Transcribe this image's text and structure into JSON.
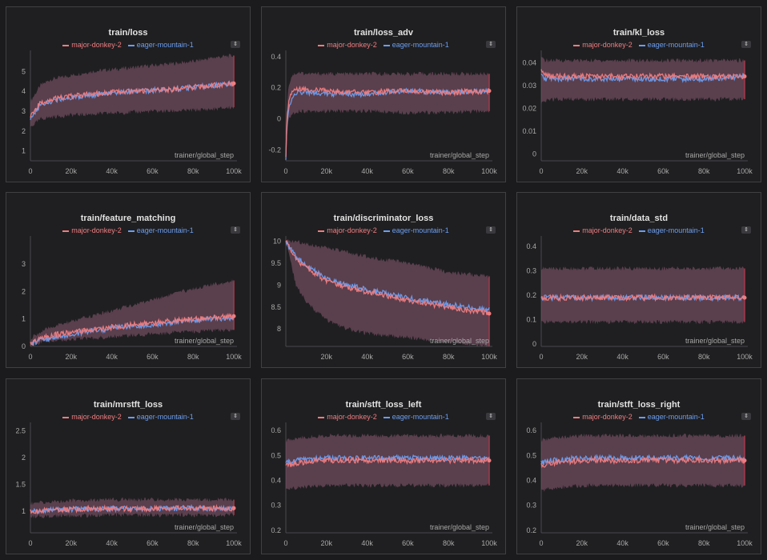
{
  "legend": {
    "run1": "major-donkey-2",
    "run2": "eager-mountain-1",
    "run1_color": "#f07d80",
    "run2_color": "#6c9ef0",
    "band_color": "#8a5a72"
  },
  "menu_icon": "up-down-chevron-icon",
  "chart_data": [
    {
      "type": "line",
      "title": "train/loss",
      "xlabel": "trainer/global_step",
      "xlim": [
        0,
        100000
      ],
      "xticks": [
        0,
        20000,
        40000,
        60000,
        80000,
        100000
      ],
      "xtick_labels": [
        "0",
        "20k",
        "40k",
        "60k",
        "80k",
        "100k"
      ],
      "ylim": [
        0.5,
        5.9
      ],
      "yticks": [
        1,
        2,
        3,
        4,
        5
      ],
      "ytick_labels": [
        "1",
        "2",
        "3",
        "4",
        "5"
      ],
      "series": [
        {
          "name": "major-donkey-2",
          "x": [
            0,
            5000,
            10000,
            20000,
            30000,
            40000,
            50000,
            60000,
            70000,
            80000,
            90000,
            100000
          ],
          "values": [
            2.8,
            3.4,
            3.6,
            3.75,
            3.85,
            3.95,
            4.0,
            4.05,
            4.1,
            4.2,
            4.3,
            4.4
          ],
          "band_low": [
            2.2,
            2.6,
            2.7,
            2.8,
            2.85,
            2.9,
            2.95,
            3.0,
            3.0,
            3.05,
            3.1,
            3.2
          ],
          "band_high": [
            3.5,
            4.3,
            4.6,
            4.8,
            5.0,
            5.1,
            5.2,
            5.3,
            5.4,
            5.5,
            5.7,
            5.8
          ]
        },
        {
          "name": "eager-mountain-1",
          "x": [
            0,
            5000,
            10000,
            20000,
            30000,
            40000,
            50000,
            60000,
            70000,
            80000,
            90000,
            100000
          ],
          "values": [
            2.7,
            3.3,
            3.5,
            3.7,
            3.82,
            3.92,
            4.0,
            4.05,
            4.1,
            4.2,
            4.3,
            4.4
          ]
        }
      ]
    },
    {
      "type": "line",
      "title": "train/loss_adv",
      "xlabel": "trainer/global_step",
      "xlim": [
        0,
        100000
      ],
      "xticks": [
        0,
        20000,
        40000,
        60000,
        80000,
        100000
      ],
      "xtick_labels": [
        "0",
        "20k",
        "40k",
        "60k",
        "80k",
        "100k"
      ],
      "ylim": [
        -0.27,
        0.42
      ],
      "yticks": [
        -0.2,
        0,
        0.2,
        0.4
      ],
      "ytick_labels": [
        "-0.2",
        "0",
        "0.2",
        "0.4"
      ],
      "series": [
        {
          "name": "major-donkey-2",
          "x": [
            0,
            500,
            1500,
            3000,
            6000,
            10000,
            20000,
            40000,
            60000,
            80000,
            100000
          ],
          "values": [
            -0.23,
            0.0,
            0.12,
            0.18,
            0.2,
            0.19,
            0.18,
            0.17,
            0.18,
            0.17,
            0.18
          ],
          "band_low": [
            -0.25,
            -0.1,
            0.0,
            0.03,
            0.05,
            0.05,
            0.05,
            0.05,
            0.04,
            0.04,
            0.05
          ],
          "band_high": [
            -0.1,
            0.1,
            0.22,
            0.28,
            0.3,
            0.29,
            0.29,
            0.29,
            0.29,
            0.29,
            0.29
          ]
        },
        {
          "name": "eager-mountain-1",
          "x": [
            0,
            500,
            1500,
            3000,
            6000,
            10000,
            20000,
            40000,
            60000,
            80000,
            100000
          ],
          "values": [
            -0.25,
            -0.05,
            0.08,
            0.13,
            0.17,
            0.17,
            0.16,
            0.16,
            0.18,
            0.17,
            0.18
          ]
        }
      ]
    },
    {
      "type": "line",
      "title": "train/kl_loss",
      "xlabel": "trainer/global_step",
      "xlim": [
        0,
        100000
      ],
      "xticks": [
        0,
        20000,
        40000,
        60000,
        80000,
        100000
      ],
      "xtick_labels": [
        "0",
        "20k",
        "40k",
        "60k",
        "80k",
        "100k"
      ],
      "ylim": [
        -0.003,
        0.044
      ],
      "yticks": [
        0,
        0.01,
        0.02,
        0.03,
        0.04
      ],
      "ytick_labels": [
        "0",
        "0.01",
        "0.02",
        "0.03",
        "0.04"
      ],
      "series": [
        {
          "name": "major-donkey-2",
          "x": [
            0,
            2000,
            5000,
            20000,
            40000,
            60000,
            80000,
            100000
          ],
          "values": [
            0.036,
            0.035,
            0.034,
            0.034,
            0.034,
            0.034,
            0.034,
            0.034
          ],
          "band_low": [
            0.022,
            0.023,
            0.024,
            0.024,
            0.024,
            0.024,
            0.024,
            0.024
          ],
          "band_high": [
            0.042,
            0.041,
            0.041,
            0.041,
            0.041,
            0.041,
            0.041,
            0.041
          ]
        },
        {
          "name": "eager-mountain-1",
          "x": [
            0,
            2000,
            5000,
            20000,
            40000,
            60000,
            80000,
            100000
          ],
          "values": [
            0.034,
            0.033,
            0.033,
            0.033,
            0.033,
            0.033,
            0.033,
            0.034
          ]
        }
      ]
    },
    {
      "type": "line",
      "title": "train/feature_matching",
      "xlabel": "trainer/global_step",
      "xlim": [
        0,
        100000
      ],
      "xticks": [
        0,
        20000,
        40000,
        60000,
        80000,
        100000
      ],
      "xtick_labels": [
        "0",
        "20k",
        "40k",
        "60k",
        "80k",
        "100k"
      ],
      "ylim": [
        0,
        3.9
      ],
      "yticks": [
        0,
        1,
        2,
        3
      ],
      "ytick_labels": [
        "0",
        "1",
        "2",
        "3"
      ],
      "series": [
        {
          "name": "major-donkey-2",
          "x": [
            0,
            2000,
            10000,
            20000,
            40000,
            60000,
            80000,
            100000
          ],
          "values": [
            0.1,
            0.2,
            0.4,
            0.5,
            0.7,
            0.85,
            1.0,
            1.1
          ],
          "band_low": [
            0.05,
            0.1,
            0.2,
            0.25,
            0.35,
            0.45,
            0.55,
            0.6
          ],
          "band_high": [
            0.2,
            0.4,
            0.7,
            0.9,
            1.3,
            1.7,
            2.1,
            2.4
          ]
        },
        {
          "name": "eager-mountain-1",
          "x": [
            0,
            2000,
            10000,
            20000,
            40000,
            60000,
            80000,
            100000
          ],
          "values": [
            0.08,
            0.15,
            0.3,
            0.45,
            0.65,
            0.8,
            0.95,
            1.05
          ]
        }
      ]
    },
    {
      "type": "line",
      "title": "train/discriminator_loss",
      "xlabel": "trainer/global_step",
      "xlim": [
        0,
        100000
      ],
      "xticks": [
        20000,
        40000,
        60000,
        80000,
        100000
      ],
      "xtick_labels": [
        "20k",
        "40k",
        "60k",
        "80k",
        "100k"
      ],
      "ylim": [
        7.6,
        10.05
      ],
      "yticks": [
        8,
        8.5,
        9,
        9.5,
        10
      ],
      "ytick_labels": [
        "8",
        "8.5",
        "9",
        "9.5",
        "10"
      ],
      "series": [
        {
          "name": "major-donkey-2",
          "x": [
            0,
            5000,
            10000,
            20000,
            30000,
            40000,
            60000,
            80000,
            100000
          ],
          "values": [
            10.0,
            9.6,
            9.4,
            9.1,
            8.95,
            8.85,
            8.65,
            8.5,
            8.35
          ],
          "band_low": [
            10.0,
            9.0,
            8.6,
            8.2,
            8.0,
            7.9,
            7.8,
            7.7,
            7.6
          ],
          "band_high": [
            10.0,
            10.0,
            9.95,
            9.85,
            9.75,
            9.65,
            9.5,
            9.3,
            9.2
          ]
        },
        {
          "name": "eager-mountain-1",
          "x": [
            0,
            5000,
            10000,
            20000,
            30000,
            40000,
            60000,
            80000,
            100000
          ],
          "values": [
            10.0,
            9.65,
            9.45,
            9.15,
            9.0,
            8.9,
            8.7,
            8.55,
            8.45
          ]
        }
      ]
    },
    {
      "type": "line",
      "title": "train/data_std",
      "xlabel": "trainer/global_step",
      "xlim": [
        0,
        100000
      ],
      "xticks": [
        0,
        20000,
        40000,
        60000,
        80000,
        100000
      ],
      "xtick_labels": [
        "0",
        "20k",
        "40k",
        "60k",
        "80k",
        "100k"
      ],
      "ylim": [
        -0.01,
        0.43
      ],
      "yticks": [
        0,
        0.1,
        0.2,
        0.3,
        0.4
      ],
      "ytick_labels": [
        "0",
        "0.1",
        "0.2",
        "0.3",
        "0.4"
      ],
      "series": [
        {
          "name": "major-donkey-2",
          "x": [
            0,
            20000,
            40000,
            60000,
            80000,
            100000
          ],
          "values": [
            0.19,
            0.19,
            0.19,
            0.19,
            0.19,
            0.19
          ],
          "band_low": [
            0.09,
            0.09,
            0.09,
            0.09,
            0.09,
            0.09
          ],
          "band_high": [
            0.31,
            0.31,
            0.31,
            0.31,
            0.31,
            0.31
          ]
        },
        {
          "name": "eager-mountain-1",
          "x": [
            0,
            20000,
            40000,
            60000,
            80000,
            100000
          ],
          "values": [
            0.19,
            0.19,
            0.19,
            0.19,
            0.19,
            0.19
          ]
        }
      ]
    },
    {
      "type": "line",
      "title": "train/mrstft_loss",
      "xlabel": "trainer/global_step",
      "xlim": [
        0,
        100000
      ],
      "xticks": [
        0,
        20000,
        40000,
        60000,
        80000,
        100000
      ],
      "xtick_labels": [
        "0",
        "20k",
        "40k",
        "60k",
        "80k",
        "100k"
      ],
      "ylim": [
        0.6,
        2.6
      ],
      "yticks": [
        1,
        1.5,
        2,
        2.5
      ],
      "ytick_labels": [
        "1",
        "1.5",
        "2",
        "2.5"
      ],
      "series": [
        {
          "name": "major-donkey-2",
          "x": [
            0,
            20000,
            40000,
            60000,
            80000,
            100000
          ],
          "values": [
            1.0,
            1.04,
            1.05,
            1.05,
            1.06,
            1.06
          ],
          "band_low": [
            0.9,
            0.92,
            0.93,
            0.93,
            0.93,
            0.93
          ],
          "band_high": [
            1.15,
            1.2,
            1.22,
            1.22,
            1.22,
            1.22
          ]
        },
        {
          "name": "eager-mountain-1",
          "x": [
            0,
            20000,
            40000,
            60000,
            80000,
            100000
          ],
          "values": [
            1.0,
            1.04,
            1.05,
            1.05,
            1.06,
            1.06
          ]
        }
      ]
    },
    {
      "type": "line",
      "title": "train/stft_loss_left",
      "xlabel": "trainer/global_step",
      "xlim": [
        0,
        100000
      ],
      "xticks": [
        0,
        20000,
        40000,
        60000,
        80000,
        100000
      ],
      "xtick_labels": [
        "0",
        "20k",
        "40k",
        "60k",
        "80k",
        "100k"
      ],
      "ylim": [
        0.19,
        0.62
      ],
      "yticks": [
        0.2,
        0.3,
        0.4,
        0.5,
        0.6
      ],
      "ytick_labels": [
        "0.2",
        "0.3",
        "0.4",
        "0.5",
        "0.6"
      ],
      "series": [
        {
          "name": "major-donkey-2",
          "x": [
            0,
            5000,
            20000,
            40000,
            60000,
            80000,
            100000
          ],
          "values": [
            0.46,
            0.47,
            0.48,
            0.48,
            0.48,
            0.48,
            0.48
          ],
          "band_low": [
            0.36,
            0.37,
            0.38,
            0.38,
            0.38,
            0.38,
            0.38
          ],
          "band_high": [
            0.56,
            0.57,
            0.58,
            0.58,
            0.58,
            0.58,
            0.58
          ]
        },
        {
          "name": "eager-mountain-1",
          "x": [
            0,
            5000,
            20000,
            40000,
            60000,
            80000,
            100000
          ],
          "values": [
            0.47,
            0.48,
            0.49,
            0.49,
            0.49,
            0.49,
            0.49
          ]
        }
      ]
    },
    {
      "type": "line",
      "title": "train/stft_loss_right",
      "xlabel": "trainer/global_step",
      "xlim": [
        0,
        100000
      ],
      "xticks": [
        0,
        20000,
        40000,
        60000,
        80000,
        100000
      ],
      "xtick_labels": [
        "0",
        "20k",
        "40k",
        "60k",
        "80k",
        "100k"
      ],
      "ylim": [
        0.19,
        0.62
      ],
      "yticks": [
        0.2,
        0.3,
        0.4,
        0.5,
        0.6
      ],
      "ytick_labels": [
        "0.2",
        "0.3",
        "0.4",
        "0.5",
        "0.6"
      ],
      "series": [
        {
          "name": "major-donkey-2",
          "x": [
            0,
            5000,
            20000,
            40000,
            60000,
            80000,
            100000
          ],
          "values": [
            0.46,
            0.47,
            0.48,
            0.48,
            0.48,
            0.48,
            0.48
          ],
          "band_low": [
            0.36,
            0.37,
            0.38,
            0.38,
            0.38,
            0.38,
            0.38
          ],
          "band_high": [
            0.56,
            0.57,
            0.58,
            0.58,
            0.58,
            0.58,
            0.58
          ]
        },
        {
          "name": "eager-mountain-1",
          "x": [
            0,
            5000,
            20000,
            40000,
            60000,
            80000,
            100000
          ],
          "values": [
            0.47,
            0.48,
            0.49,
            0.49,
            0.49,
            0.49,
            0.49
          ]
        }
      ]
    }
  ]
}
